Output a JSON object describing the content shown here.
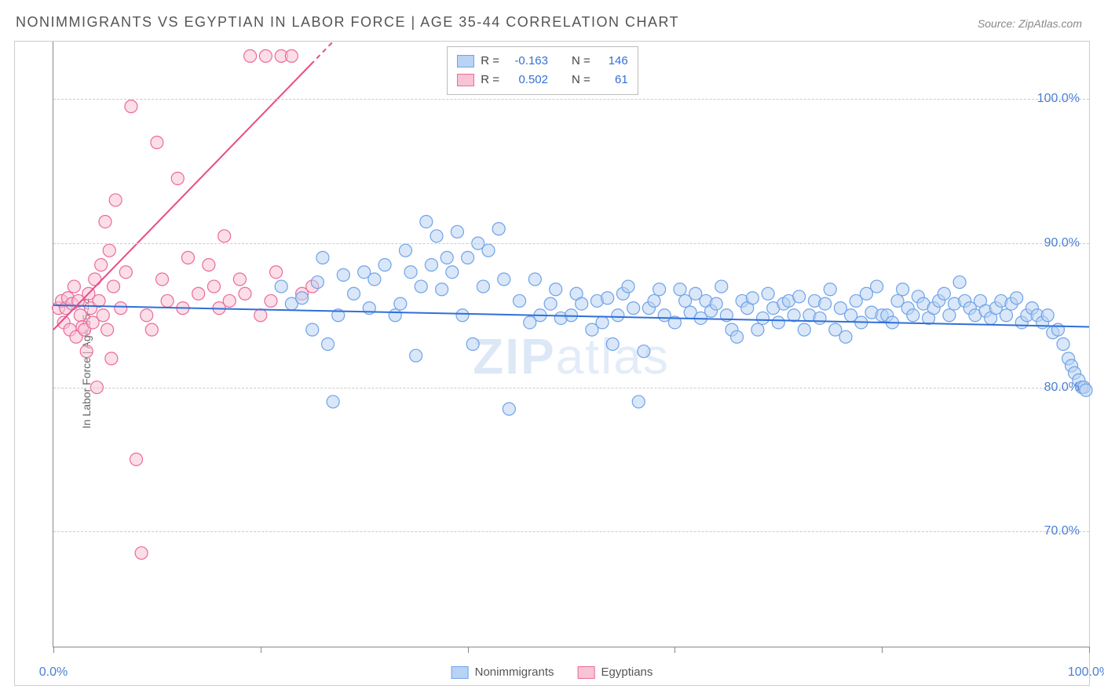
{
  "title": "NONIMMIGRANTS VS EGYPTIAN IN LABOR FORCE | AGE 35-44 CORRELATION CHART",
  "source": "Source: ZipAtlas.com",
  "ylabel": "In Labor Force | Age 35-44",
  "watermark_a": "ZIP",
  "watermark_b": "atlas",
  "chart": {
    "type": "scatter",
    "xlim": [
      0,
      100
    ],
    "ylim": [
      62,
      104
    ],
    "x_ticks": [
      0,
      20,
      40,
      60,
      80,
      100
    ],
    "x_tick_labels": {
      "0": "0.0%",
      "100": "100.0%"
    },
    "y_gridlines": [
      70,
      80,
      90,
      100
    ],
    "y_tick_labels": {
      "70": "70.0%",
      "80": "80.0%",
      "90": "90.0%",
      "100": "100.0%"
    },
    "background_color": "#ffffff",
    "grid_color": "#cccccc",
    "axis_color": "#888888",
    "axis_label_color": "#4a7fd6",
    "marker_radius": 8,
    "marker_stroke_width": 1.2,
    "trend_stroke_width": 2
  },
  "series": [
    {
      "name": "Nonimmigrants",
      "fill": "#b9d3f4",
      "stroke": "#6fa3e8",
      "fill_opacity": 0.55,
      "trend_color": "#2f6fd8",
      "trend": {
        "x1": 0,
        "y1": 85.7,
        "x2": 100,
        "y2": 84.2
      },
      "R": "-0.163",
      "N": "146",
      "points": [
        [
          22,
          87.0
        ],
        [
          23,
          85.8
        ],
        [
          24,
          86.2
        ],
        [
          25,
          84.0
        ],
        [
          25.5,
          87.3
        ],
        [
          26,
          89.0
        ],
        [
          26.5,
          83.0
        ],
        [
          27,
          79.0
        ],
        [
          27.5,
          85.0
        ],
        [
          28,
          87.8
        ],
        [
          29,
          86.5
        ],
        [
          30,
          88.0
        ],
        [
          30.5,
          85.5
        ],
        [
          31,
          87.5
        ],
        [
          32,
          88.5
        ],
        [
          33,
          85.0
        ],
        [
          33.5,
          85.8
        ],
        [
          34,
          89.5
        ],
        [
          34.5,
          88.0
        ],
        [
          35,
          82.2
        ],
        [
          35.5,
          87.0
        ],
        [
          36,
          91.5
        ],
        [
          36.5,
          88.5
        ],
        [
          37,
          90.5
        ],
        [
          37.5,
          86.8
        ],
        [
          38,
          89.0
        ],
        [
          38.5,
          88.0
        ],
        [
          39,
          90.8
        ],
        [
          39.5,
          85.0
        ],
        [
          40,
          89.0
        ],
        [
          40.5,
          83.0
        ],
        [
          41,
          90.0
        ],
        [
          41.5,
          87.0
        ],
        [
          42,
          89.5
        ],
        [
          43,
          91.0
        ],
        [
          43.5,
          87.5
        ],
        [
          44,
          78.5
        ],
        [
          45,
          86.0
        ],
        [
          46,
          84.5
        ],
        [
          46.5,
          87.5
        ],
        [
          47,
          85.0
        ],
        [
          48,
          85.8
        ],
        [
          48.5,
          86.8
        ],
        [
          49,
          84.8
        ],
        [
          50,
          85.0
        ],
        [
          50.5,
          86.5
        ],
        [
          51,
          85.8
        ],
        [
          52,
          84.0
        ],
        [
          52.5,
          86.0
        ],
        [
          53,
          84.5
        ],
        [
          53.5,
          86.2
        ],
        [
          54,
          83.0
        ],
        [
          54.5,
          85.0
        ],
        [
          55,
          86.5
        ],
        [
          55.5,
          87.0
        ],
        [
          56,
          85.5
        ],
        [
          56.5,
          79.0
        ],
        [
          57,
          82.5
        ],
        [
          57.5,
          85.5
        ],
        [
          58,
          86.0
        ],
        [
          58.5,
          86.8
        ],
        [
          59,
          85.0
        ],
        [
          60,
          84.5
        ],
        [
          60.5,
          86.8
        ],
        [
          61,
          86.0
        ],
        [
          61.5,
          85.2
        ],
        [
          62,
          86.5
        ],
        [
          62.5,
          84.8
        ],
        [
          63,
          86.0
        ],
        [
          63.5,
          85.3
        ],
        [
          64,
          85.8
        ],
        [
          64.5,
          87.0
        ],
        [
          65,
          85.0
        ],
        [
          65.5,
          84.0
        ],
        [
          66,
          83.5
        ],
        [
          66.5,
          86.0
        ],
        [
          67,
          85.5
        ],
        [
          67.5,
          86.2
        ],
        [
          68,
          84.0
        ],
        [
          68.5,
          84.8
        ],
        [
          69,
          86.5
        ],
        [
          69.5,
          85.5
        ],
        [
          70,
          84.5
        ],
        [
          70.5,
          85.8
        ],
        [
          71,
          86.0
        ],
        [
          71.5,
          85.0
        ],
        [
          72,
          86.3
        ],
        [
          72.5,
          84.0
        ],
        [
          73,
          85.0
        ],
        [
          73.5,
          86.0
        ],
        [
          74,
          84.8
        ],
        [
          74.5,
          85.8
        ],
        [
          75,
          86.8
        ],
        [
          75.5,
          84.0
        ],
        [
          76,
          85.5
        ],
        [
          76.5,
          83.5
        ],
        [
          77,
          85.0
        ],
        [
          77.5,
          86.0
        ],
        [
          78,
          84.5
        ],
        [
          78.5,
          86.5
        ],
        [
          79,
          85.2
        ],
        [
          79.5,
          87.0
        ],
        [
          80,
          85.0
        ],
        [
          80.5,
          85.0
        ],
        [
          81,
          84.5
        ],
        [
          81.5,
          86.0
        ],
        [
          82,
          86.8
        ],
        [
          82.5,
          85.5
        ],
        [
          83,
          85.0
        ],
        [
          83.5,
          86.3
        ],
        [
          84,
          85.8
        ],
        [
          84.5,
          84.8
        ],
        [
          85,
          85.5
        ],
        [
          85.5,
          86.0
        ],
        [
          86,
          86.5
        ],
        [
          86.5,
          85.0
        ],
        [
          87,
          85.8
        ],
        [
          87.5,
          87.3
        ],
        [
          88,
          86.0
        ],
        [
          88.5,
          85.5
        ],
        [
          89,
          85.0
        ],
        [
          89.5,
          86.0
        ],
        [
          90,
          85.3
        ],
        [
          90.5,
          84.8
        ],
        [
          91,
          85.5
        ],
        [
          91.5,
          86.0
        ],
        [
          92,
          85.0
        ],
        [
          92.5,
          85.8
        ],
        [
          93,
          86.2
        ],
        [
          93.5,
          84.5
        ],
        [
          94,
          85.0
        ],
        [
          94.5,
          85.5
        ],
        [
          95,
          85.0
        ],
        [
          95.5,
          84.5
        ],
        [
          96,
          85.0
        ],
        [
          96.5,
          83.8
        ],
        [
          97,
          84.0
        ],
        [
          97.5,
          83.0
        ],
        [
          98,
          82.0
        ],
        [
          98.3,
          81.5
        ],
        [
          98.6,
          81.0
        ],
        [
          99,
          80.5
        ],
        [
          99.3,
          80.0
        ],
        [
          99.5,
          80.0
        ],
        [
          99.7,
          79.8
        ]
      ]
    },
    {
      "name": "Egyptians",
      "fill": "#f7c3d5",
      "stroke": "#ec6a9a",
      "fill_opacity": 0.55,
      "trend_color": "#e94b86",
      "trend": {
        "x1": 0,
        "y1": 84.0,
        "x2": 27,
        "y2": 104.0
      },
      "trend_dashed_after": 103,
      "R": "0.502",
      "N": "61",
      "points": [
        [
          0.5,
          85.5
        ],
        [
          0.8,
          86.0
        ],
        [
          1.0,
          84.5
        ],
        [
          1.2,
          85.5
        ],
        [
          1.4,
          86.2
        ],
        [
          1.6,
          84.0
        ],
        [
          1.8,
          85.8
        ],
        [
          2.0,
          87.0
        ],
        [
          2.2,
          83.5
        ],
        [
          2.4,
          86.0
        ],
        [
          2.6,
          85.0
        ],
        [
          2.8,
          84.2
        ],
        [
          3.0,
          84.0
        ],
        [
          3.2,
          82.5
        ],
        [
          3.4,
          86.5
        ],
        [
          3.6,
          85.5
        ],
        [
          3.8,
          84.5
        ],
        [
          4.0,
          87.5
        ],
        [
          4.2,
          80.0
        ],
        [
          4.4,
          86.0
        ],
        [
          4.6,
          88.5
        ],
        [
          4.8,
          85.0
        ],
        [
          5.0,
          91.5
        ],
        [
          5.2,
          84.0
        ],
        [
          5.4,
          89.5
        ],
        [
          5.6,
          82.0
        ],
        [
          5.8,
          87.0
        ],
        [
          6.0,
          93.0
        ],
        [
          6.5,
          85.5
        ],
        [
          7.0,
          88.0
        ],
        [
          7.5,
          99.5
        ],
        [
          8.0,
          75.0
        ],
        [
          8.5,
          68.5
        ],
        [
          9.0,
          85.0
        ],
        [
          9.5,
          84.0
        ],
        [
          10.0,
          97.0
        ],
        [
          10.5,
          87.5
        ],
        [
          11.0,
          86.0
        ],
        [
          12.0,
          94.5
        ],
        [
          12.5,
          85.5
        ],
        [
          13.0,
          89.0
        ],
        [
          14.0,
          86.5
        ],
        [
          15.0,
          88.5
        ],
        [
          15.5,
          87.0
        ],
        [
          16.0,
          85.5
        ],
        [
          16.5,
          90.5
        ],
        [
          17.0,
          86.0
        ],
        [
          18.0,
          87.5
        ],
        [
          18.5,
          86.5
        ],
        [
          19.0,
          103.0
        ],
        [
          20.0,
          85.0
        ],
        [
          20.5,
          103.0
        ],
        [
          21.0,
          86.0
        ],
        [
          21.5,
          88.0
        ],
        [
          22.0,
          103.0
        ],
        [
          23.0,
          103.0
        ],
        [
          24.0,
          86.5
        ],
        [
          25.0,
          87.0
        ]
      ]
    }
  ],
  "stats_box": {
    "rows": [
      {
        "swatch_fill": "#b9d3f4",
        "swatch_stroke": "#6fa3e8",
        "r_label": "R =",
        "r_val": "-0.163",
        "n_label": "N =",
        "n_val": "146"
      },
      {
        "swatch_fill": "#f7c3d5",
        "swatch_stroke": "#ec6a9a",
        "r_label": "R =",
        "r_val": "0.502",
        "n_label": "N =",
        "n_val": "  61"
      }
    ]
  },
  "bottom_legend": [
    {
      "swatch_fill": "#b9d3f4",
      "swatch_stroke": "#6fa3e8",
      "label": "Nonimmigrants"
    },
    {
      "swatch_fill": "#f7c3d5",
      "swatch_stroke": "#ec6a9a",
      "label": "Egyptians"
    }
  ]
}
